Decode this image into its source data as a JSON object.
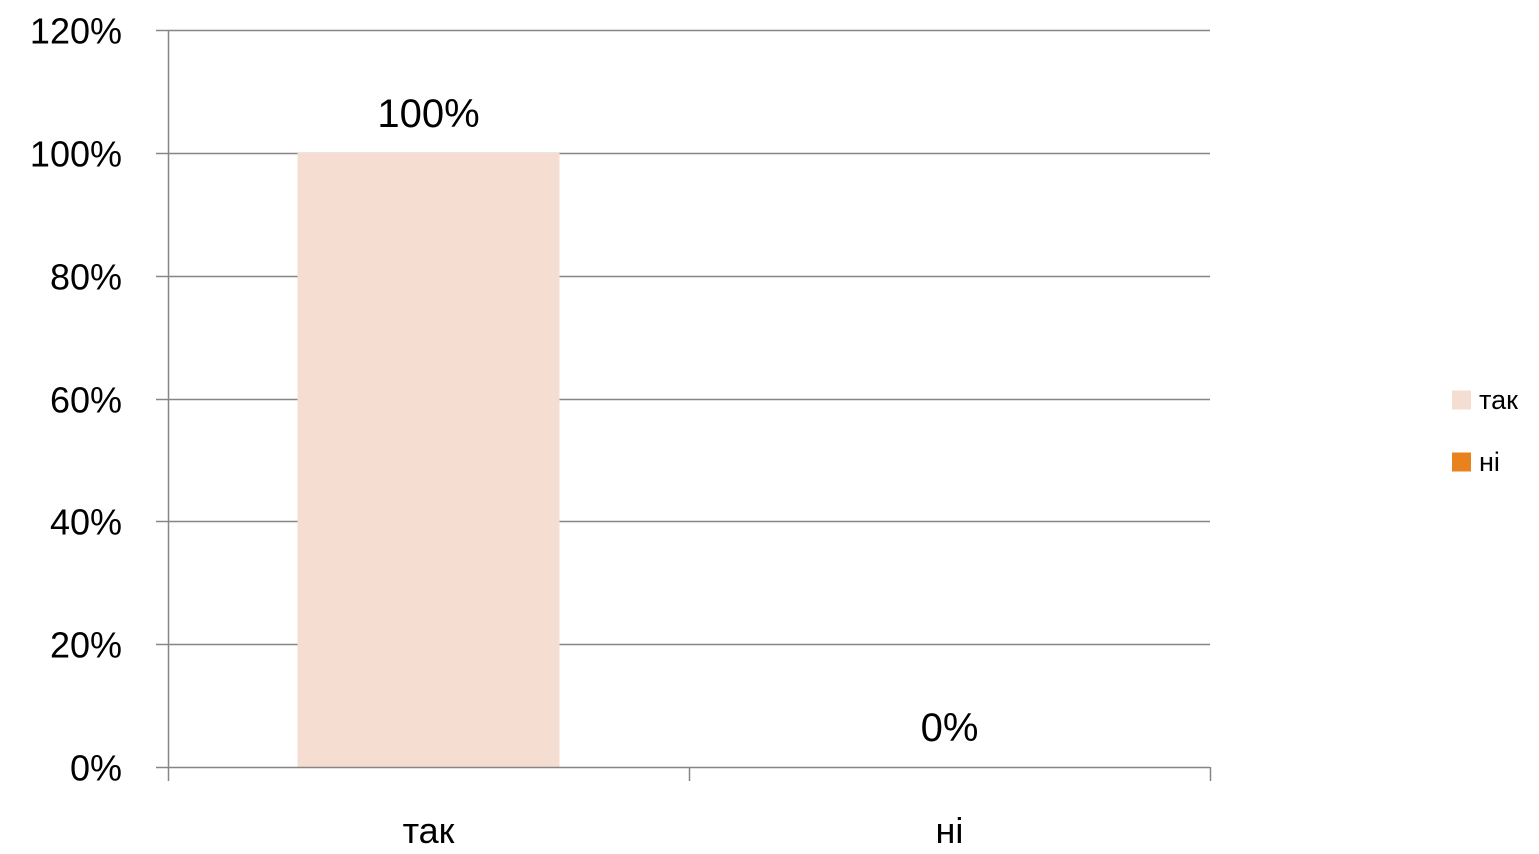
{
  "chart_data": {
    "type": "bar",
    "title": "",
    "xlabel": "",
    "ylabel": "",
    "categories": [
      "так",
      "ні"
    ],
    "series": [
      {
        "name": "так",
        "values": [
          1.0,
          null
        ],
        "color": "#f5ddd2"
      },
      {
        "name": "ні",
        "values": [
          null,
          0.0
        ],
        "color": "#e8821e"
      }
    ],
    "data_labels": [
      "100%",
      "0%"
    ],
    "ylim": [
      0,
      1.2
    ],
    "y_ticks": [
      0,
      0.2,
      0.4,
      0.6,
      0.8,
      1.0,
      1.2
    ],
    "y_tick_labels": [
      "0%",
      "20%",
      "40%",
      "60%",
      "80%",
      "100%",
      "120%"
    ],
    "y_format": "percent",
    "grid": true,
    "legend": {
      "position": "right",
      "items": [
        {
          "label": "так",
          "color": "#f5ddd2"
        },
        {
          "label": "ні",
          "color": "#e8821e"
        }
      ]
    },
    "colors": {
      "grid": "#868686",
      "axis": "#868686"
    }
  }
}
